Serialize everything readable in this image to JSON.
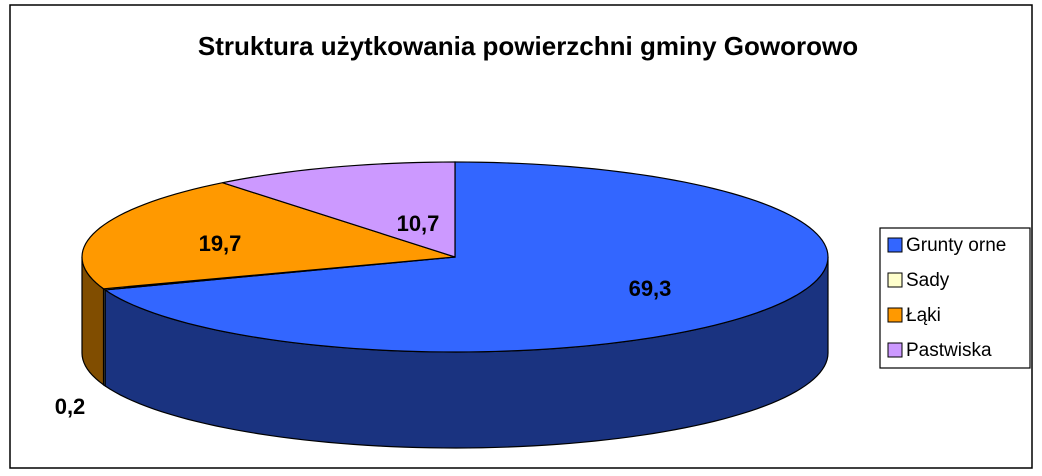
{
  "chart_data": {
    "type": "pie",
    "title": "Struktura użytkowania powierzchni gminy Goworowo",
    "categories": [
      "Grunty orne",
      "Sady",
      "Łąki",
      "Pastwiska"
    ],
    "values": [
      69.3,
      0.2,
      19.7,
      10.7
    ],
    "value_labels": [
      "69,3",
      "0,2",
      "19,7",
      "10,7"
    ],
    "colors": [
      "#3366ff",
      "#ffffcc",
      "#ff9900",
      "#cc99ff"
    ],
    "legend": "right"
  }
}
